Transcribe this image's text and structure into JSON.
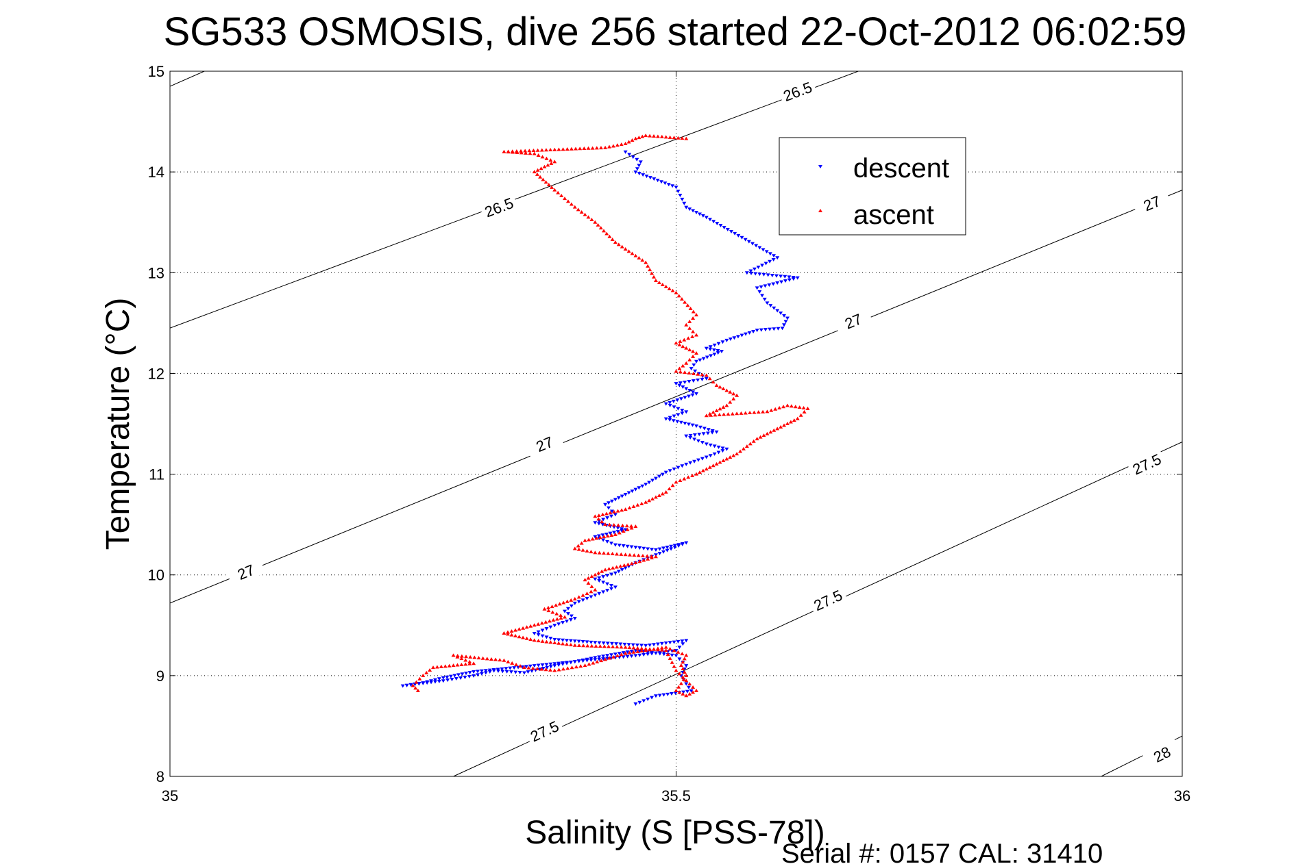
{
  "chart_data": {
    "type": "scatter",
    "title": "SG533 OSMOSIS, dive 256 started 22-Oct-2012 06:02:59",
    "xlabel": "Salinity (S [PSS-78])",
    "ylabel": "Temperature (°C)",
    "xlim": [
      35,
      36
    ],
    "ylim": [
      8,
      15
    ],
    "xticks": [
      {
        "value": 35,
        "label": "35"
      },
      {
        "value": 35.5,
        "label": "35.5"
      },
      {
        "value": 36,
        "label": "36"
      }
    ],
    "yticks": [
      {
        "value": 8,
        "label": "8"
      },
      {
        "value": 9,
        "label": "9"
      },
      {
        "value": 10,
        "label": "10"
      },
      {
        "value": 11,
        "label": "11"
      },
      {
        "value": 12,
        "label": "12"
      },
      {
        "value": 13,
        "label": "13"
      },
      {
        "value": 14,
        "label": "14"
      },
      {
        "value": 15,
        "label": "15"
      }
    ],
    "grid": true,
    "legend_position": "top-right",
    "colors": {
      "descent": "#0000ff",
      "ascent": "#ff0000",
      "contour": "#000000"
    },
    "contours": [
      {
        "level": "26.5",
        "points": [
          [
            35,
            14.85
          ],
          [
            35.034,
            15.0
          ]
        ],
        "labels": []
      },
      {
        "level": "26.5",
        "points": [
          [
            35,
            12.45
          ],
          [
            35.68,
            15.0
          ]
        ],
        "labels": [
          {
            "x": 35.325,
            "y": 13.65,
            "text": "26.5"
          },
          {
            "x": 35.62,
            "y": 14.8,
            "text": "26.5"
          }
        ]
      },
      {
        "level": "27",
        "points": [
          [
            35,
            9.72
          ],
          [
            36,
            13.82
          ]
        ],
        "labels": [
          {
            "x": 35.075,
            "y": 10.03,
            "text": "27"
          },
          {
            "x": 35.37,
            "y": 11.3,
            "text": "27"
          },
          {
            "x": 35.675,
            "y": 12.52,
            "text": "27"
          },
          {
            "x": 35.97,
            "y": 13.69,
            "text": "27"
          }
        ]
      },
      {
        "level": "27.5",
        "points": [
          [
            35.28,
            8.0
          ],
          [
            36,
            11.32
          ]
        ],
        "labels": [
          {
            "x": 35.37,
            "y": 8.45,
            "text": "27.5"
          },
          {
            "x": 35.65,
            "y": 9.75,
            "text": "27.5"
          },
          {
            "x": 35.965,
            "y": 11.1,
            "text": "27.5"
          }
        ]
      },
      {
        "level": "28",
        "points": [
          [
            35.92,
            8.0
          ],
          [
            36,
            8.4
          ]
        ],
        "labels": [
          {
            "x": 35.98,
            "y": 8.22,
            "text": "28"
          }
        ]
      }
    ],
    "series": [
      {
        "name": "descent",
        "marker": "triangle-down",
        "path": [
          [
            35.45,
            14.2
          ],
          [
            35.465,
            14.1
          ],
          [
            35.46,
            14.0
          ],
          [
            35.5,
            13.85
          ],
          [
            35.51,
            13.65
          ],
          [
            35.53,
            13.55
          ],
          [
            35.6,
            13.15
          ],
          [
            35.57,
            13.0
          ],
          [
            35.62,
            12.95
          ],
          [
            35.58,
            12.85
          ],
          [
            35.59,
            12.7
          ],
          [
            35.61,
            12.55
          ],
          [
            35.605,
            12.45
          ],
          [
            35.58,
            12.43
          ],
          [
            35.55,
            12.33
          ],
          [
            35.53,
            12.25
          ],
          [
            35.545,
            12.22
          ],
          [
            35.52,
            12.12
          ],
          [
            35.515,
            12.05
          ],
          [
            35.53,
            11.95
          ],
          [
            35.5,
            11.9
          ],
          [
            35.52,
            11.8
          ],
          [
            35.49,
            11.7
          ],
          [
            35.51,
            11.62
          ],
          [
            35.49,
            11.55
          ],
          [
            35.52,
            11.48
          ],
          [
            35.54,
            11.42
          ],
          [
            35.51,
            11.38
          ],
          [
            35.53,
            11.3
          ],
          [
            35.55,
            11.25
          ],
          [
            35.53,
            11.17
          ],
          [
            35.51,
            11.1
          ],
          [
            35.49,
            11.02
          ],
          [
            35.47,
            10.9
          ],
          [
            35.45,
            10.8
          ],
          [
            35.43,
            10.7
          ],
          [
            35.44,
            10.6
          ],
          [
            35.42,
            10.52
          ],
          [
            35.45,
            10.45
          ],
          [
            35.42,
            10.38
          ],
          [
            35.44,
            10.3
          ],
          [
            35.48,
            10.25
          ],
          [
            35.51,
            10.32
          ],
          [
            35.48,
            10.2
          ],
          [
            35.46,
            10.12
          ],
          [
            35.44,
            10.02
          ],
          [
            35.42,
            9.96
          ],
          [
            35.44,
            9.88
          ],
          [
            35.42,
            9.8
          ],
          [
            35.4,
            9.72
          ],
          [
            35.39,
            9.64
          ],
          [
            35.4,
            9.57
          ],
          [
            35.38,
            9.5
          ],
          [
            35.36,
            9.42
          ],
          [
            35.38,
            9.36
          ],
          [
            35.42,
            9.33
          ],
          [
            35.47,
            9.3
          ],
          [
            35.51,
            9.35
          ],
          [
            35.5,
            9.25
          ],
          [
            35.46,
            9.2
          ],
          [
            35.42,
            9.16
          ],
          [
            35.38,
            9.12
          ],
          [
            35.34,
            9.08
          ],
          [
            35.3,
            9.04
          ],
          [
            35.27,
            8.98
          ],
          [
            35.25,
            8.93
          ],
          [
            35.23,
            8.9
          ],
          [
            35.27,
            8.95
          ],
          [
            35.3,
            9.0
          ],
          [
            35.32,
            9.05
          ],
          [
            35.35,
            9.03
          ],
          [
            35.38,
            9.1
          ],
          [
            35.42,
            9.18
          ],
          [
            35.46,
            9.25
          ],
          [
            35.5,
            9.2
          ],
          [
            35.51,
            9.1
          ],
          [
            35.505,
            9.0
          ],
          [
            35.51,
            8.92
          ],
          [
            35.515,
            8.85
          ],
          [
            35.48,
            8.8
          ],
          [
            35.46,
            8.72
          ]
        ]
      },
      {
        "name": "ascent",
        "marker": "triangle-up",
        "path": [
          [
            35.245,
            8.85
          ],
          [
            35.24,
            8.9
          ],
          [
            35.25,
            9.0
          ],
          [
            35.26,
            9.08
          ],
          [
            35.3,
            9.12
          ],
          [
            35.28,
            9.2
          ],
          [
            35.33,
            9.15
          ],
          [
            35.35,
            9.08
          ],
          [
            35.38,
            9.05
          ],
          [
            35.41,
            9.1
          ],
          [
            35.45,
            9.22
          ],
          [
            35.49,
            9.28
          ],
          [
            35.51,
            9.2
          ],
          [
            35.505,
            9.1
          ],
          [
            35.51,
            9.0
          ],
          [
            35.505,
            8.92
          ],
          [
            35.5,
            8.85
          ],
          [
            35.51,
            8.8
          ],
          [
            35.52,
            8.85
          ],
          [
            35.51,
            8.95
          ],
          [
            35.5,
            9.05
          ],
          [
            35.49,
            9.25
          ],
          [
            35.45,
            9.28
          ],
          [
            35.4,
            9.3
          ],
          [
            35.36,
            9.35
          ],
          [
            35.33,
            9.42
          ],
          [
            35.36,
            9.5
          ],
          [
            35.39,
            9.58
          ],
          [
            35.37,
            9.66
          ],
          [
            35.4,
            9.76
          ],
          [
            35.42,
            9.85
          ],
          [
            35.41,
            9.95
          ],
          [
            35.43,
            10.05
          ],
          [
            35.46,
            10.12
          ],
          [
            35.48,
            10.18
          ],
          [
            35.45,
            10.2
          ],
          [
            35.42,
            10.22
          ],
          [
            35.4,
            10.26
          ],
          [
            35.41,
            10.34
          ],
          [
            35.44,
            10.4
          ],
          [
            35.46,
            10.48
          ],
          [
            35.43,
            10.5
          ],
          [
            35.42,
            10.58
          ],
          [
            35.45,
            10.65
          ],
          [
            35.47,
            10.72
          ],
          [
            35.49,
            10.82
          ],
          [
            35.5,
            10.92
          ],
          [
            35.52,
            11.0
          ],
          [
            35.54,
            11.1
          ],
          [
            35.56,
            11.2
          ],
          [
            35.58,
            11.35
          ],
          [
            35.6,
            11.45
          ],
          [
            35.62,
            11.55
          ],
          [
            35.63,
            11.65
          ],
          [
            35.61,
            11.68
          ],
          [
            35.59,
            11.62
          ],
          [
            35.56,
            11.6
          ],
          [
            35.53,
            11.58
          ],
          [
            35.55,
            11.68
          ],
          [
            35.56,
            11.78
          ],
          [
            35.54,
            11.88
          ],
          [
            35.53,
            11.98
          ],
          [
            35.5,
            12.02
          ],
          [
            35.51,
            12.1
          ],
          [
            35.52,
            12.2
          ],
          [
            35.5,
            12.3
          ],
          [
            35.52,
            12.38
          ],
          [
            35.51,
            12.48
          ],
          [
            35.52,
            12.58
          ],
          [
            35.5,
            12.8
          ],
          [
            35.48,
            12.92
          ],
          [
            35.47,
            13.1
          ],
          [
            35.44,
            13.3
          ],
          [
            35.42,
            13.5
          ],
          [
            35.4,
            13.65
          ],
          [
            35.38,
            13.82
          ],
          [
            35.36,
            14.0
          ],
          [
            35.38,
            14.1
          ],
          [
            35.36,
            14.18
          ],
          [
            35.33,
            14.2
          ],
          [
            35.38,
            14.22
          ],
          [
            35.43,
            14.24
          ],
          [
            35.45,
            14.28
          ],
          [
            35.46,
            14.33
          ],
          [
            35.47,
            14.36
          ],
          [
            35.51,
            14.33
          ]
        ]
      }
    ]
  },
  "footer": {
    "serial": "Serial #: 0157  CAL: 31410"
  }
}
